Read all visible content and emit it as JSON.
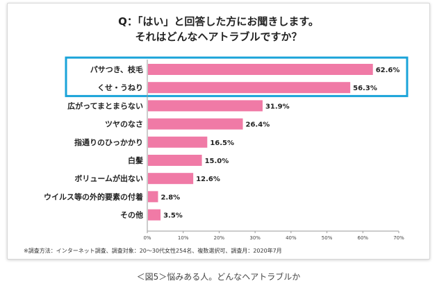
{
  "question": {
    "line1": "Q：「はい」と回答した方にお聞きします。",
    "line2": "それはどんなヘアトラブルですか？"
  },
  "chart_data": {
    "type": "bar",
    "orientation": "horizontal",
    "categories": [
      "パサつき、枝毛",
      "くせ・うねり",
      "広がってまとまらない",
      "ツヤのなさ",
      "指通りのひっかかり",
      "白髪",
      "ボリュームが出ない",
      "ウイルス等の外的要素の付着",
      "その他"
    ],
    "values": [
      62.6,
      56.3,
      31.9,
      26.4,
      16.5,
      15.0,
      12.6,
      2.8,
      3.5
    ],
    "value_labels": [
      "62.6%",
      "56.3%",
      "31.9%",
      "26.4%",
      "16.5%",
      "15.0%",
      "12.6%",
      "2.8%",
      "3.5%"
    ],
    "xlim": [
      0,
      70
    ],
    "xticks": [
      "0%",
      "10%",
      "20%",
      "30%",
      "40%",
      "50%",
      "60%",
      "70%"
    ],
    "grid": false,
    "bar_color": "#f07aa6",
    "highlight_color": "#1aa3d9",
    "highlighted_categories": [
      "パサつき、枝毛",
      "くせ・うねり"
    ]
  },
  "footnote": "※調査方法：インターネット調査、調査対象：20～30代女性254名、複数選択可、調査月：2020年7月",
  "caption": "＜図5＞悩みある人。どんなヘアトラブルか"
}
